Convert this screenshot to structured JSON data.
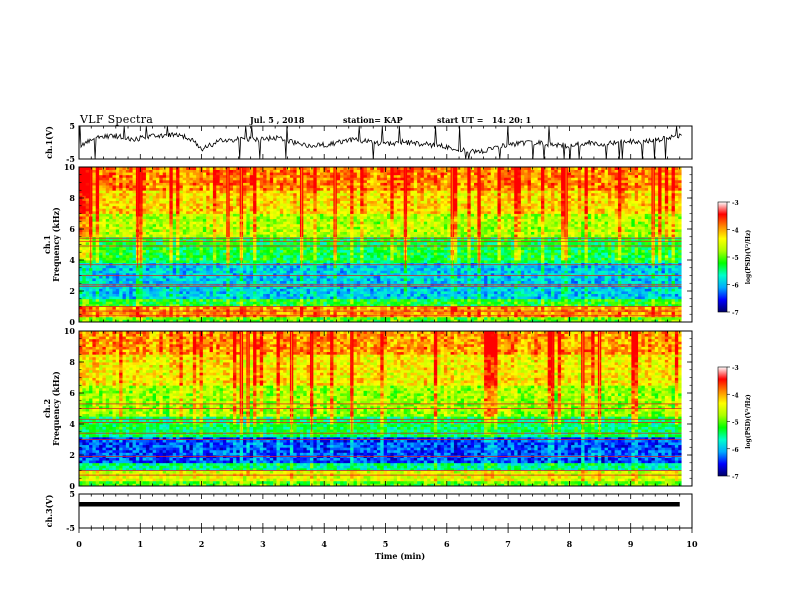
{
  "header": {
    "title": "VLF Spectra",
    "date": "Jul. 5 , 2018",
    "station": "station= KAP",
    "start": "start UT =   14: 20: 1"
  },
  "colorbar": {
    "label": "log(PSD)(V²/Hz)",
    "ticks": [
      "-3",
      "-4",
      "-5",
      "-6",
      "-7"
    ],
    "stops": [
      "#000066",
      "#0000ff",
      "#00aaff",
      "#00ffcc",
      "#00ff00",
      "#aaff00",
      "#ffff00",
      "#ff8800",
      "#ff0000",
      "#ffffff"
    ]
  },
  "chart_data": [
    {
      "type": "line",
      "panel": "ch1-waveform",
      "ylabel": "ch.1(V)",
      "ylim": [
        -5,
        5
      ],
      "yticks": [
        "5",
        "-5"
      ],
      "xlim": [
        0,
        10
      ],
      "series": [
        {
          "x": [
            0.0,
            0.3,
            0.6,
            0.9,
            1.2,
            1.5,
            1.8,
            2.0,
            2.3,
            2.6,
            2.9,
            3.2,
            3.5,
            3.8,
            4.1,
            4.4,
            4.7,
            5.0,
            5.3,
            5.6,
            5.9,
            6.2,
            6.5,
            6.8,
            7.1,
            7.4,
            7.7,
            8.0,
            8.3,
            8.6,
            8.9,
            9.2,
            9.5,
            9.8
          ],
          "values": [
            -1.0,
            1.5,
            2.0,
            1.0,
            1.8,
            2.5,
            1.5,
            -2.0,
            0.5,
            1.0,
            0.8,
            1.5,
            0.0,
            -1.0,
            -0.5,
            0.8,
            0.5,
            -0.5,
            0.2,
            -0.5,
            -1.0,
            -2.0,
            -3.0,
            -1.5,
            -0.5,
            0.0,
            -0.5,
            -1.0,
            0.0,
            -0.5,
            0.5,
            0.0,
            1.0,
            2.0
          ]
        }
      ]
    },
    {
      "type": "heatmap",
      "panel": "ch1-spectrogram",
      "ylabel": "ch.1\nFrequency (kHz)",
      "ylim": [
        0,
        10
      ],
      "yticks": [
        "0",
        "2",
        "4",
        "6",
        "8",
        "10"
      ],
      "xlim": [
        0,
        10
      ],
      "bands": [
        {
          "from": 0.0,
          "to": 0.3,
          "level": -4.8
        },
        {
          "from": 0.3,
          "to": 1.0,
          "level": -3.6
        },
        {
          "from": 1.0,
          "to": 1.5,
          "level": -5.0
        },
        {
          "from": 1.5,
          "to": 3.8,
          "level": -5.8
        },
        {
          "from": 3.8,
          "to": 5.5,
          "level": -5.1
        },
        {
          "from": 5.5,
          "to": 7.0,
          "level": -4.4
        },
        {
          "from": 7.0,
          "to": 8.5,
          "level": -3.9
        },
        {
          "from": 8.5,
          "to": 10.0,
          "level": -3.5
        }
      ],
      "lines_khz": [
        0.4,
        0.7,
        1.0,
        2.3,
        2.4,
        3.0,
        3.7,
        4.9,
        5.2,
        5.4
      ]
    },
    {
      "type": "heatmap",
      "panel": "ch2-spectrogram",
      "ylabel": "ch.2\nFrequency (kHz)",
      "ylim": [
        0,
        10
      ],
      "yticks": [
        "0",
        "2",
        "4",
        "6",
        "8",
        "10"
      ],
      "xlim": [
        0,
        10
      ],
      "bands": [
        {
          "from": 0.0,
          "to": 0.4,
          "level": -4.8
        },
        {
          "from": 0.4,
          "to": 1.0,
          "level": -4.2
        },
        {
          "from": 1.0,
          "to": 1.5,
          "level": -5.4
        },
        {
          "from": 1.5,
          "to": 3.2,
          "level": -6.3
        },
        {
          "from": 3.2,
          "to": 4.5,
          "level": -5.2
        },
        {
          "from": 4.5,
          "to": 6.5,
          "level": -4.5
        },
        {
          "from": 6.5,
          "to": 8.5,
          "level": -4.0
        },
        {
          "from": 8.5,
          "to": 10.0,
          "level": -3.6
        }
      ],
      "lines_khz": [
        0.7,
        1.0,
        1.9,
        3.0,
        3.4,
        4.1,
        4.3,
        5.0,
        5.3
      ]
    },
    {
      "type": "line",
      "panel": "ch3-waveform",
      "ylabel": "ch.3(V)",
      "ylim": [
        -5,
        5
      ],
      "yticks": [
        "5",
        "-5"
      ],
      "xlim": [
        0,
        10
      ],
      "xlabel": "Time (min)",
      "xticks": [
        "0",
        "1",
        "2",
        "3",
        "4",
        "5",
        "6",
        "7",
        "8",
        "9",
        "10"
      ],
      "series": [
        {
          "x": [
            0.0,
            9.8
          ],
          "values": [
            2.0,
            2.0
          ]
        }
      ]
    }
  ]
}
